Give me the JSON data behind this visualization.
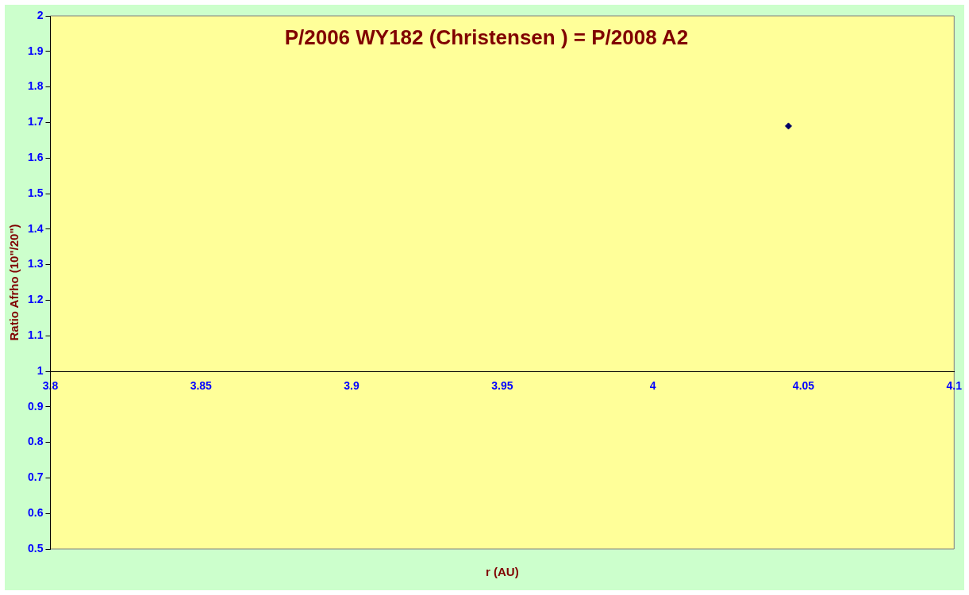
{
  "chart_data": {
    "type": "scatter",
    "title": "P/2006 WY182 (Christensen ) = P/2008 A2",
    "xlabel": "r (AU)",
    "ylabel": "Ratio Afrho (10\"/20\")",
    "series": [
      {
        "color": "#000066",
        "x": [
          4.045
        ],
        "values": [
          1.69
        ]
      }
    ],
    "xlim": [
      3.8,
      4.1
    ],
    "xticks": [
      3.8,
      3.85,
      3.9,
      3.95,
      4,
      4.05,
      4.1
    ],
    "ylim": [
      0.5,
      2
    ],
    "yticks": [
      0.5,
      0.6,
      0.7,
      0.8,
      0.9,
      1,
      1.1,
      1.2,
      1.3,
      1.4,
      1.5,
      1.6,
      1.7,
      1.8,
      1.9,
      2
    ],
    "marker": "diamond",
    "grid": false,
    "legend": false
  }
}
